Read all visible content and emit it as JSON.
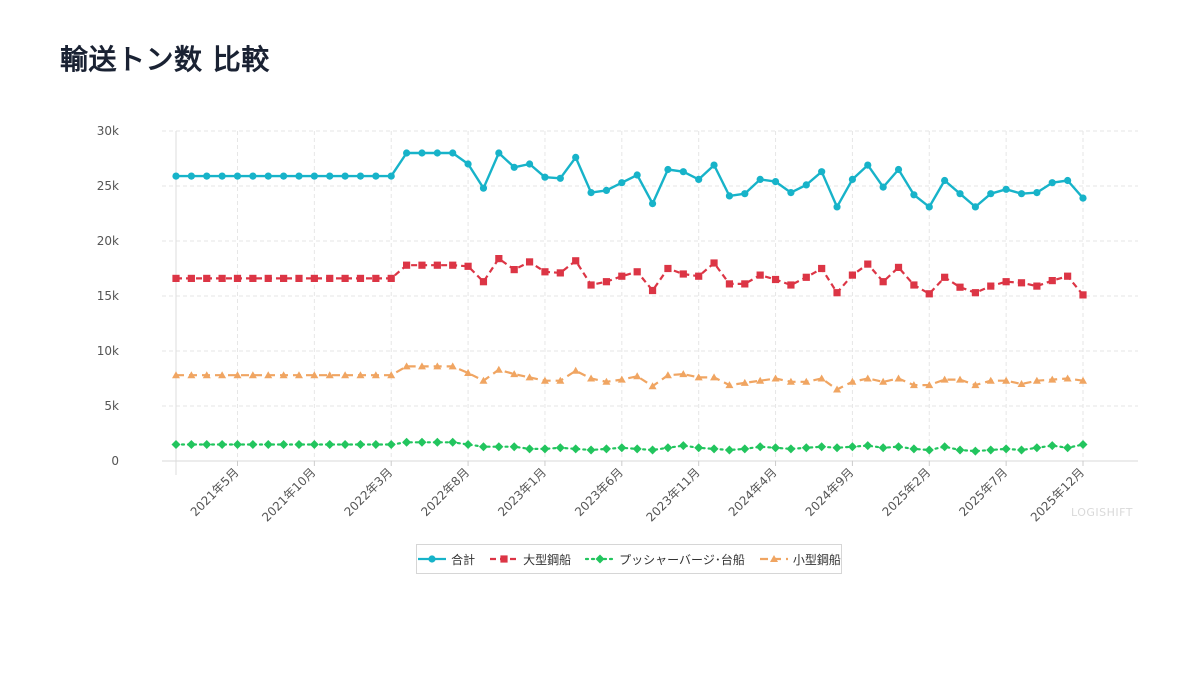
{
  "page": {
    "title": "輸送トン数 比較",
    "watermark": "LOGISHIFT"
  },
  "chart_data": {
    "type": "line",
    "title": "輸送トン数 比較",
    "xlabel": "",
    "ylabel": "",
    "ylim": [
      0,
      30000
    ],
    "yticks": [
      0,
      5000,
      10000,
      15000,
      20000,
      25000,
      30000
    ],
    "ytick_labels": [
      "0",
      "5k",
      "10k",
      "15k",
      "20k",
      "25k",
      "30k"
    ],
    "x_start": "2021年1月",
    "xtick_labels": [
      "2021年5月",
      "2021年10月",
      "2022年3月",
      "2022年8月",
      "2023年1月",
      "2023年6月",
      "2023年11月",
      "2024年4月",
      "2024年9月",
      "2025年2月",
      "2025年7月",
      "2025年12月"
    ],
    "xtick_index": [
      4,
      9,
      14,
      19,
      24,
      29,
      34,
      39,
      44,
      49,
      54,
      59
    ],
    "grid": true,
    "legend_position": "bottom",
    "series": [
      {
        "name": "合計",
        "color": "#17b3c9",
        "dash": "solid",
        "marker": "circle",
        "values": [
          25900,
          25900,
          25900,
          25900,
          25900,
          25900,
          25900,
          25900,
          25900,
          25900,
          25900,
          25900,
          25900,
          25900,
          25900,
          28000,
          28000,
          28000,
          28000,
          27000,
          24800,
          28000,
          26700,
          27000,
          25800,
          25700,
          27600,
          24400,
          24600,
          25300,
          26000,
          23400,
          26500,
          26300,
          25600,
          26900,
          24100,
          24300,
          25600,
          25400,
          24400,
          25100,
          26300,
          23100,
          25600,
          26900,
          24900,
          26500,
          24200,
          23100,
          25500,
          24300,
          23100,
          24300,
          24700,
          24300,
          24400,
          25300,
          25500,
          23900
        ]
      },
      {
        "name": "大型鋼船",
        "color": "#dc3545",
        "dash": "dashed",
        "marker": "square",
        "values": [
          16600,
          16600,
          16600,
          16600,
          16600,
          16600,
          16600,
          16600,
          16600,
          16600,
          16600,
          16600,
          16600,
          16600,
          16600,
          17800,
          17800,
          17800,
          17800,
          17700,
          16300,
          18400,
          17400,
          18100,
          17200,
          17100,
          18200,
          16000,
          16300,
          16800,
          17200,
          15500,
          17500,
          17000,
          16800,
          18000,
          16100,
          16100,
          16900,
          16500,
          16000,
          16700,
          17500,
          15300,
          16900,
          17900,
          16300,
          17600,
          16000,
          15200,
          16700,
          15800,
          15300,
          15900,
          16300,
          16200,
          15900,
          16400,
          16800,
          15100
        ]
      },
      {
        "name": "プッシャーバージ･台船",
        "color": "#22c55e",
        "dash": "dotted",
        "marker": "diamond",
        "values": [
          1500,
          1500,
          1500,
          1500,
          1500,
          1500,
          1500,
          1500,
          1500,
          1500,
          1500,
          1500,
          1500,
          1500,
          1500,
          1700,
          1700,
          1700,
          1700,
          1500,
          1300,
          1300,
          1300,
          1100,
          1100,
          1200,
          1100,
          1000,
          1100,
          1200,
          1100,
          1000,
          1200,
          1400,
          1200,
          1100,
          1000,
          1100,
          1300,
          1200,
          1100,
          1200,
          1300,
          1200,
          1300,
          1400,
          1200,
          1300,
          1100,
          1000,
          1300,
          1000,
          900,
          1000,
          1100,
          1000,
          1200,
          1400,
          1200,
          1500
        ]
      },
      {
        "name": "小型鋼船",
        "color": "#f0a562",
        "dash": "longdash",
        "marker": "triangle",
        "values": [
          7800,
          7800,
          7800,
          7800,
          7800,
          7800,
          7800,
          7800,
          7800,
          7800,
          7800,
          7800,
          7800,
          7800,
          7800,
          8600,
          8600,
          8600,
          8600,
          8000,
          7300,
          8300,
          7900,
          7600,
          7300,
          7300,
          8200,
          7500,
          7200,
          7400,
          7700,
          6800,
          7800,
          7900,
          7600,
          7600,
          6900,
          7100,
          7300,
          7500,
          7200,
          7200,
          7500,
          6500,
          7200,
          7500,
          7200,
          7500,
          6900,
          6900,
          7400,
          7400,
          6900,
          7300,
          7300,
          7000,
          7300,
          7400,
          7500,
          7300
        ]
      }
    ]
  }
}
